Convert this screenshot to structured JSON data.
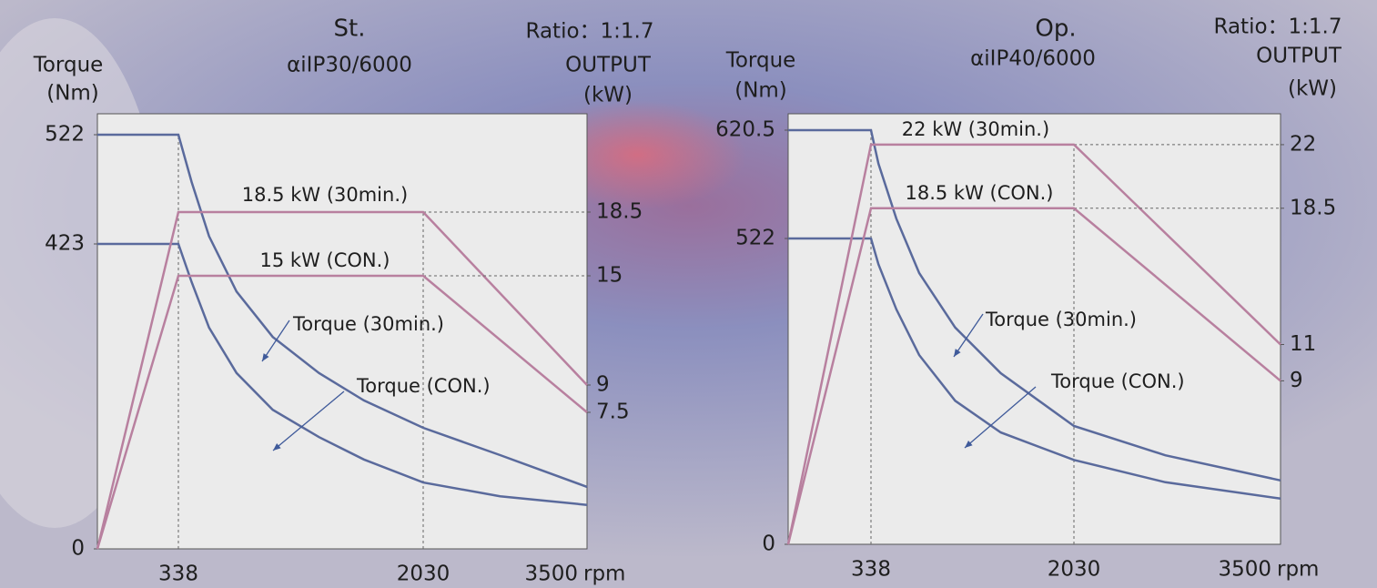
{
  "chart_data": [
    {
      "type": "line",
      "title": "St.",
      "subtitle": "αiIP30/6000",
      "annotation": "Ratio：1:1.7",
      "ylabel": [
        "Torque",
        "(Nm)"
      ],
      "y2label": [
        "OUTPUT",
        "(kW)"
      ],
      "xlabel": "rpm",
      "xlim": [
        0,
        3500
      ],
      "xticks": [
        338,
        2030,
        3500
      ],
      "ylim": [
        0,
        541
      ],
      "yticks": [
        0,
        423,
        522
      ],
      "y2lim": [
        0,
        23.9
      ],
      "y2ticks": [
        7.5,
        9,
        15,
        18.5
      ],
      "series": [
        {
          "name": "Torque (30min.)",
          "color": "#5a6a9c",
          "x": [
            0,
            338,
            430,
            550,
            740,
            990,
            1310,
            1620,
            2030,
            2720,
            3500
          ],
          "values": [
            522,
            522,
            479,
            430,
            357,
            294,
            244,
            206,
            168,
            130,
            86
          ]
        },
        {
          "name": "Torque (CON.)",
          "color": "#5a6a9c",
          "x": [
            0,
            338,
            430,
            550,
            740,
            990,
            1310,
            1620,
            2030,
            2720,
            3500
          ],
          "values": [
            423,
            423,
            370,
            307,
            244,
            193,
            155,
            124,
            92,
            73,
            61
          ]
        },
        {
          "name": "18.5 kW (30min.)",
          "color": "#b8809f",
          "axis": "y2",
          "x": [
            0,
            338,
            2030,
            3500
          ],
          "values": [
            0,
            18.5,
            18.5,
            9
          ]
        },
        {
          "name": "15 kW (CON.)",
          "color": "#b8809f",
          "axis": "y2",
          "x": [
            0,
            338,
            2030,
            3500
          ],
          "values": [
            0,
            15,
            15,
            7.5
          ]
        }
      ]
    },
    {
      "type": "line",
      "title": "Op.",
      "subtitle": "αiIP40/6000",
      "annotation": "Ratio：1:1.7",
      "ylabel": [
        "Torque",
        "(Nm)"
      ],
      "y2label": [
        "OUTPUT",
        "(kW)"
      ],
      "xlabel": "rpm",
      "xlim": [
        0,
        3500
      ],
      "xticks": [
        338,
        2030,
        3500
      ],
      "ylim": [
        0,
        635
      ],
      "yticks": [
        0,
        522,
        620.5
      ],
      "y2lim": [
        0,
        23.7
      ],
      "y2ticks": [
        9,
        11,
        18.5,
        22
      ],
      "series": [
        {
          "name": "Torque (30min.)",
          "color": "#5a6a9c",
          "x": [
            0,
            338,
            400,
            550,
            740,
            1040,
            1420,
            2030,
            2680,
            3500
          ],
          "values": [
            620.5,
            620.5,
            590,
            540,
            463,
            370,
            292,
            202,
            152,
            109
          ]
        },
        {
          "name": "Torque (CON.)",
          "color": "#5a6a9c",
          "x": [
            0,
            338,
            400,
            550,
            740,
            1040,
            1420,
            2030,
            2680,
            3500
          ],
          "values": [
            522,
            522,
            478,
            401,
            323,
            245,
            191,
            144,
            106,
            78
          ]
        },
        {
          "name": "22 kW (30min.)",
          "color": "#b8809f",
          "axis": "y2",
          "x": [
            0,
            338,
            2030,
            3500
          ],
          "values": [
            0,
            22,
            22,
            11
          ]
        },
        {
          "name": "18.5 kW (CON.)",
          "color": "#b8809f",
          "axis": "y2",
          "x": [
            0,
            338,
            2030,
            3500
          ],
          "values": [
            0,
            18.5,
            18.5,
            9
          ]
        }
      ]
    }
  ]
}
